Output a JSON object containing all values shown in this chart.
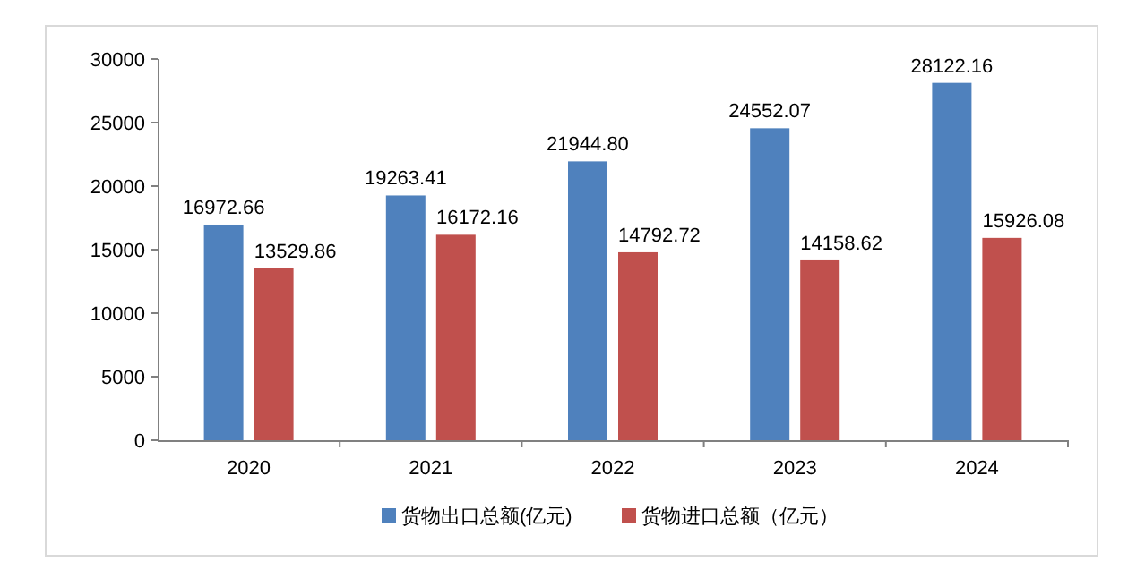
{
  "chart_data": {
    "type": "bar",
    "categories": [
      "2020",
      "2021",
      "2022",
      "2023",
      "2024"
    ],
    "series": [
      {
        "name": "货物出口总额(亿元)",
        "color": "#4f81bd",
        "values": [
          16972.66,
          19263.41,
          21944.8,
          24552.07,
          28122.16
        ],
        "value_labels": [
          "16972.66",
          "19263.41",
          "21944.80",
          "24552.07",
          "28122.16"
        ]
      },
      {
        "name": "货物进口总额（亿元）",
        "color": "#c0504d",
        "values": [
          13529.86,
          16172.16,
          14792.72,
          14158.62,
          15926.08
        ],
        "value_labels": [
          "13529.86",
          "16172.16",
          "14792.72",
          "14158.62",
          "15926.08"
        ]
      }
    ],
    "ylim": [
      0,
      30000
    ],
    "yticks": [
      0,
      5000,
      10000,
      15000,
      20000,
      25000,
      30000
    ],
    "grid": false,
    "legend": "bottom"
  }
}
